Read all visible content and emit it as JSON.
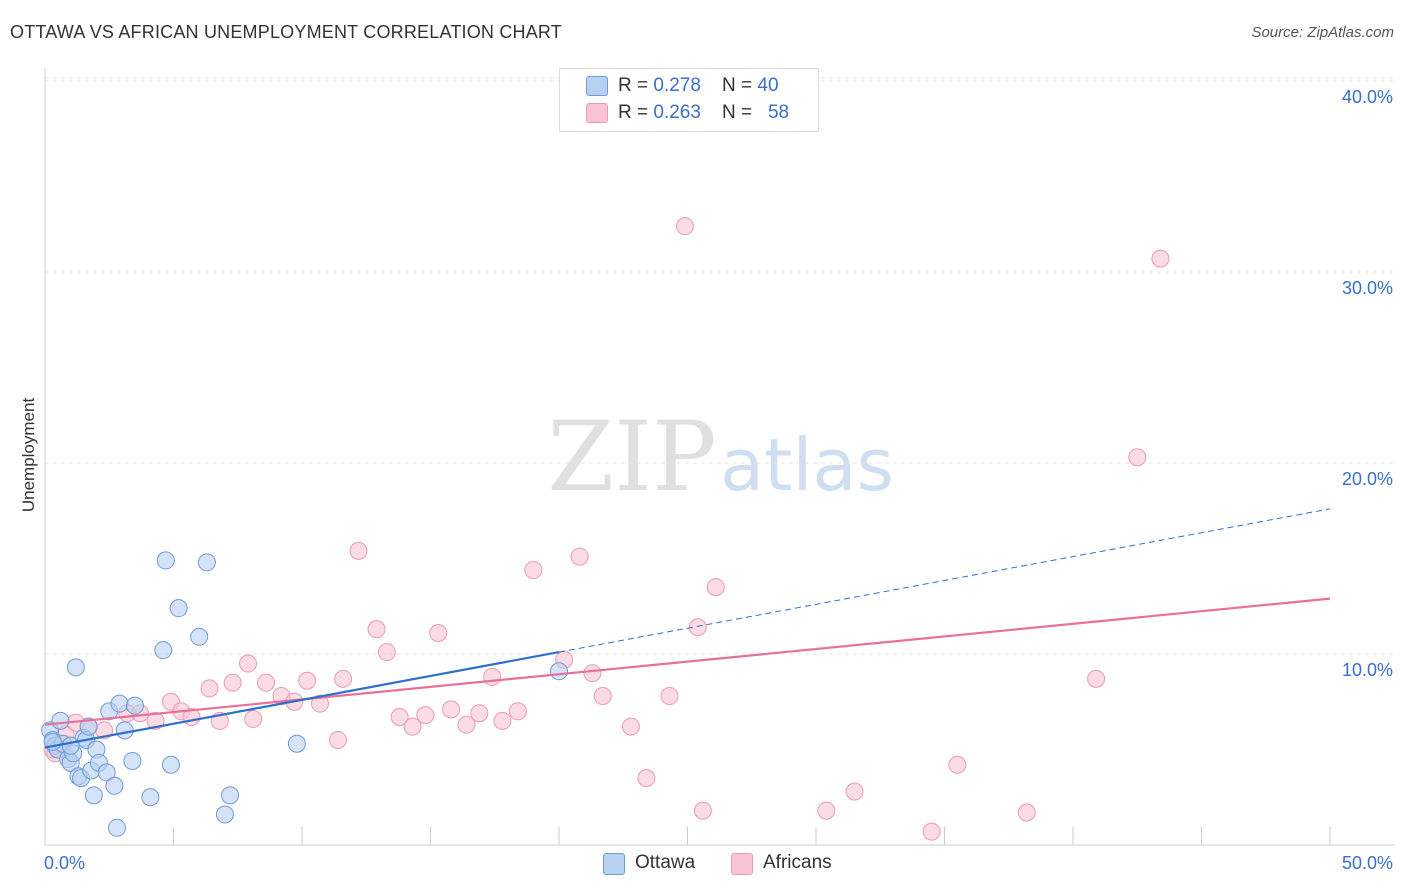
{
  "header": {
    "title": "OTTAWA VS AFRICAN UNEMPLOYMENT CORRELATION CHART",
    "source": "Source: ZipAtlas.com"
  },
  "legend": {
    "rows": [
      {
        "r_label": "R = ",
        "r_value": "0.278",
        "n_label": "N = ",
        "n_value": "40"
      },
      {
        "r_label": "R = ",
        "r_value": "0.263",
        "n_label": "N = ",
        "n_value": "58"
      }
    ]
  },
  "watermark": {
    "zip": "ZIP",
    "atlas": "atlas"
  },
  "colors": {
    "ottawa_fill": "#b8d1f3",
    "ottawa_stroke": "#6f9bd8",
    "ottawa_line": "#2e6fcc",
    "africans_fill": "#f9c5d4",
    "africans_stroke": "#ec9ab3",
    "africans_line": "#e8709a",
    "tick_label": "#3a6fc8",
    "grid": "#e4e4e4"
  },
  "chart_data": {
    "type": "scatter",
    "title": "OTTAWA VS AFRICAN UNEMPLOYMENT CORRELATION CHART",
    "xlabel": "",
    "ylabel": "Unemployment",
    "xlim": [
      0,
      50
    ],
    "ylim": [
      0,
      42
    ],
    "x_tick_labels": [
      "0.0%",
      "50.0%"
    ],
    "y_ticks": [
      10,
      20,
      30,
      40
    ],
    "y_tick_labels": [
      "10.0%",
      "20.0%",
      "30.0%",
      "40.0%"
    ],
    "grid": "horizontal dashed",
    "legend_position": "top-center and bottom",
    "series": [
      {
        "name": "Ottawa",
        "r": 0.278,
        "n": 40,
        "trend": {
          "x": [
            0,
            20
          ],
          "y": [
            5.1,
            10.1
          ]
        },
        "trend_extension": {
          "x": [
            20,
            50
          ],
          "y": [
            10.1,
            17.6
          ]
        },
        "points": [
          [
            0.2,
            6.0
          ],
          [
            0.3,
            5.5
          ],
          [
            0.4,
            5.2
          ],
          [
            0.5,
            5.0
          ],
          [
            0.6,
            6.5
          ],
          [
            0.7,
            5.3
          ],
          [
            0.9,
            4.5
          ],
          [
            1.0,
            4.3
          ],
          [
            1.1,
            4.8
          ],
          [
            1.2,
            9.3
          ],
          [
            1.3,
            3.6
          ],
          [
            1.4,
            3.5
          ],
          [
            1.5,
            5.6
          ],
          [
            1.6,
            5.5
          ],
          [
            1.7,
            6.2
          ],
          [
            1.8,
            3.9
          ],
          [
            1.9,
            2.6
          ],
          [
            2.0,
            5.0
          ],
          [
            2.1,
            4.3
          ],
          [
            2.4,
            3.8
          ],
          [
            2.5,
            7.0
          ],
          [
            2.7,
            3.1
          ],
          [
            2.8,
            0.9
          ],
          [
            2.9,
            7.4
          ],
          [
            3.1,
            6.0
          ],
          [
            3.4,
            4.4
          ],
          [
            3.5,
            7.3
          ],
          [
            4.1,
            2.5
          ],
          [
            4.6,
            10.2
          ],
          [
            4.7,
            14.9
          ],
          [
            4.9,
            4.2
          ],
          [
            5.2,
            12.4
          ],
          [
            6.0,
            10.9
          ],
          [
            6.3,
            14.8
          ],
          [
            7.0,
            1.6
          ],
          [
            7.2,
            2.6
          ],
          [
            9.8,
            5.3
          ],
          [
            20.0,
            9.1
          ],
          [
            0.3,
            5.4
          ],
          [
            1.0,
            5.2
          ]
        ]
      },
      {
        "name": "Africans",
        "r": 0.263,
        "n": 58,
        "trend": {
          "x": [
            0,
            50
          ],
          "y": [
            6.3,
            12.9
          ]
        },
        "points": [
          [
            0.3,
            5.0
          ],
          [
            0.6,
            5.3
          ],
          [
            0.8,
            5.8
          ],
          [
            1.2,
            6.4
          ],
          [
            1.7,
            6.2
          ],
          [
            2.3,
            6.0
          ],
          [
            3.2,
            6.9
          ],
          [
            3.7,
            6.9
          ],
          [
            4.3,
            6.5
          ],
          [
            4.9,
            7.5
          ],
          [
            5.3,
            7.0
          ],
          [
            5.7,
            6.7
          ],
          [
            6.4,
            8.2
          ],
          [
            6.8,
            6.5
          ],
          [
            7.3,
            8.5
          ],
          [
            7.9,
            9.5
          ],
          [
            8.1,
            6.6
          ],
          [
            8.6,
            8.5
          ],
          [
            9.2,
            7.8
          ],
          [
            9.7,
            7.5
          ],
          [
            10.2,
            8.6
          ],
          [
            10.7,
            7.4
          ],
          [
            11.4,
            5.5
          ],
          [
            11.6,
            8.7
          ],
          [
            12.2,
            15.4
          ],
          [
            12.9,
            11.3
          ],
          [
            13.3,
            10.1
          ],
          [
            13.8,
            6.7
          ],
          [
            14.3,
            6.2
          ],
          [
            14.8,
            6.8
          ],
          [
            15.3,
            11.1
          ],
          [
            15.8,
            7.1
          ],
          [
            16.4,
            6.3
          ],
          [
            16.9,
            6.9
          ],
          [
            17.4,
            8.8
          ],
          [
            17.8,
            6.5
          ],
          [
            18.4,
            7.0
          ],
          [
            19.0,
            14.4
          ],
          [
            20.2,
            9.7
          ],
          [
            20.8,
            15.1
          ],
          [
            21.3,
            9.0
          ],
          [
            21.7,
            7.8
          ],
          [
            22.8,
            6.2
          ],
          [
            23.4,
            3.5
          ],
          [
            24.3,
            7.8
          ],
          [
            24.9,
            32.4
          ],
          [
            25.4,
            11.4
          ],
          [
            25.6,
            1.8
          ],
          [
            26.1,
            13.5
          ],
          [
            30.4,
            1.8
          ],
          [
            31.5,
            2.8
          ],
          [
            34.5,
            0.7
          ],
          [
            35.5,
            4.2
          ],
          [
            38.2,
            1.7
          ],
          [
            40.9,
            8.7
          ],
          [
            42.5,
            20.3
          ],
          [
            43.4,
            30.7
          ],
          [
            0.4,
            4.8
          ]
        ]
      }
    ]
  },
  "bottom_legend": {
    "items": [
      "Ottawa",
      "Africans"
    ]
  }
}
